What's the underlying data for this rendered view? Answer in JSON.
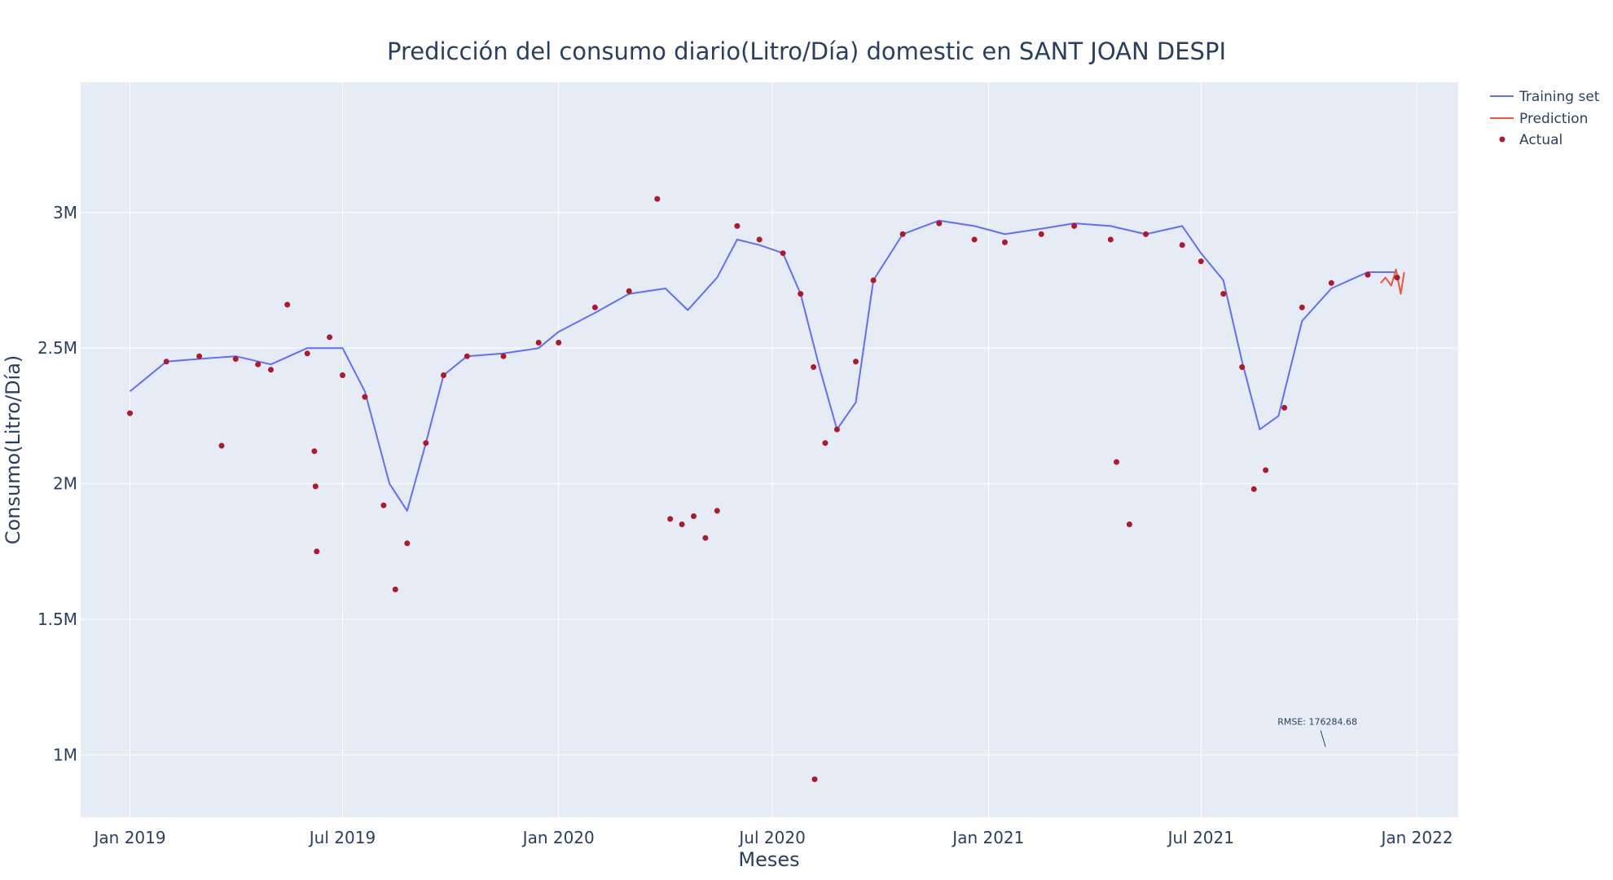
{
  "chart_data": {
    "type": "line",
    "title": "Predicción del consumo diario(Litro/Día) domestic en SANT JOAN DESPI",
    "xlabel": "Meses",
    "ylabel": "Consumo(Litro/Día)",
    "xlim": [
      "2018-11-20",
      "2022-02-05"
    ],
    "ylim": [
      770000,
      3480000
    ],
    "x_ticks": [
      {
        "date": "2019-01-01",
        "label": "Jan 2019"
      },
      {
        "date": "2019-07-01",
        "label": "Jul 2019"
      },
      {
        "date": "2020-01-01",
        "label": "Jan 2020"
      },
      {
        "date": "2020-07-01",
        "label": "Jul 2020"
      },
      {
        "date": "2021-01-01",
        "label": "Jan 2021"
      },
      {
        "date": "2021-07-01",
        "label": "Jul 2021"
      },
      {
        "date": "2022-01-01",
        "label": "Jan 2022"
      }
    ],
    "y_ticks": [
      {
        "value": 1000000,
        "label": "1M"
      },
      {
        "value": 1500000,
        "label": "1.5M"
      },
      {
        "value": 2000000,
        "label": "2M"
      },
      {
        "value": 2500000,
        "label": "2.5M"
      },
      {
        "value": 3000000,
        "label": "3M"
      }
    ],
    "grid": true,
    "legend_position": "top-right",
    "series": [
      {
        "name": "Training set",
        "kind": "line",
        "color": "#636efa",
        "x": [
          "2019-01-01",
          "2019-02-01",
          "2019-03-01",
          "2019-04-01",
          "2019-05-01",
          "2019-06-01",
          "2019-07-01",
          "2019-07-20",
          "2019-08-10",
          "2019-08-25",
          "2019-09-10",
          "2019-09-25",
          "2019-10-15",
          "2019-11-15",
          "2019-12-15",
          "2020-01-01",
          "2020-02-01",
          "2020-03-01",
          "2020-04-01",
          "2020-04-20",
          "2020-05-15",
          "2020-06-01",
          "2020-06-20",
          "2020-07-10",
          "2020-07-25",
          "2020-08-10",
          "2020-08-25",
          "2020-09-10",
          "2020-09-25",
          "2020-10-20",
          "2020-11-20",
          "2020-12-20",
          "2021-01-15",
          "2021-02-15",
          "2021-03-15",
          "2021-04-15",
          "2021-05-15",
          "2021-06-15",
          "2021-07-01",
          "2021-07-20",
          "2021-08-05",
          "2021-08-20",
          "2021-09-05",
          "2021-09-25",
          "2021-10-20",
          "2021-11-20",
          "2021-12-15"
        ],
        "y": [
          2340000,
          2450000,
          2460000,
          2470000,
          2440000,
          2500000,
          2500000,
          2340000,
          2000000,
          1900000,
          2150000,
          2400000,
          2470000,
          2480000,
          2500000,
          2560000,
          2630000,
          2700000,
          2720000,
          2640000,
          2760000,
          2900000,
          2880000,
          2850000,
          2700000,
          2430000,
          2200000,
          2300000,
          2750000,
          2920000,
          2970000,
          2950000,
          2920000,
          2940000,
          2960000,
          2950000,
          2920000,
          2950000,
          2850000,
          2750000,
          2450000,
          2200000,
          2250000,
          2600000,
          2720000,
          2780000,
          2780000
        ]
      },
      {
        "name": "Prediction",
        "kind": "line",
        "color": "#ef553b",
        "x": [
          "2021-12-01",
          "2021-12-05",
          "2021-12-10",
          "2021-12-14",
          "2021-12-18",
          "2021-12-21"
        ],
        "y": [
          2740000,
          2760000,
          2730000,
          2790000,
          2700000,
          2780000
        ]
      },
      {
        "name": "Actual",
        "kind": "markers",
        "color": "#b2182b",
        "x": [
          "2019-01-01",
          "2019-02-01",
          "2019-03-01",
          "2019-03-20",
          "2019-04-01",
          "2019-04-20",
          "2019-05-01",
          "2019-05-15",
          "2019-06-01",
          "2019-06-20",
          "2019-07-01",
          "2019-07-20",
          "2019-08-05",
          "2019-08-15",
          "2019-08-25",
          "2019-09-10",
          "2019-09-25",
          "2019-10-15",
          "2019-11-15",
          "2019-12-15",
          "2020-01-01",
          "2020-02-01",
          "2020-03-01",
          "2020-03-25",
          "2020-04-05",
          "2020-04-15",
          "2020-04-25",
          "2020-05-05",
          "2020-05-15",
          "2020-06-01",
          "2020-06-20",
          "2020-07-10",
          "2020-07-25",
          "2020-08-05",
          "2020-08-15",
          "2020-08-25",
          "2020-09-10",
          "2020-09-25",
          "2020-10-20",
          "2020-11-20",
          "2020-12-20",
          "2021-01-15",
          "2021-02-15",
          "2021-03-15",
          "2021-04-15",
          "2021-05-15",
          "2021-06-15",
          "2021-07-01",
          "2021-07-20",
          "2021-08-05",
          "2021-08-15",
          "2021-08-25",
          "2021-09-10",
          "2021-09-25",
          "2021-10-20",
          "2021-11-20",
          "2021-12-15",
          "2019-06-07",
          "2019-06-08",
          "2019-06-09",
          "2020-08-06",
          "2021-05-01",
          "2021-04-20"
        ],
        "y": [
          2260000,
          2450000,
          2470000,
          2140000,
          2460000,
          2440000,
          2420000,
          2660000,
          2480000,
          2540000,
          2400000,
          2320000,
          1920000,
          1610000,
          1780000,
          2150000,
          2400000,
          2470000,
          2470000,
          2520000,
          2520000,
          2650000,
          2710000,
          3050000,
          1870000,
          1850000,
          1880000,
          1800000,
          1900000,
          2950000,
          2900000,
          2850000,
          2700000,
          2430000,
          2150000,
          2200000,
          2450000,
          2750000,
          2920000,
          2960000,
          2900000,
          2890000,
          2920000,
          2950000,
          2900000,
          2920000,
          2880000,
          2820000,
          2700000,
          2430000,
          1980000,
          2050000,
          2280000,
          2650000,
          2740000,
          2770000,
          2760000,
          2120000,
          1990000,
          1750000,
          910000,
          1850000,
          2080000
        ]
      }
    ],
    "annotation": {
      "text": "RMSE: 176284.68",
      "x": "2021-10-15",
      "y": 1030000
    }
  }
}
